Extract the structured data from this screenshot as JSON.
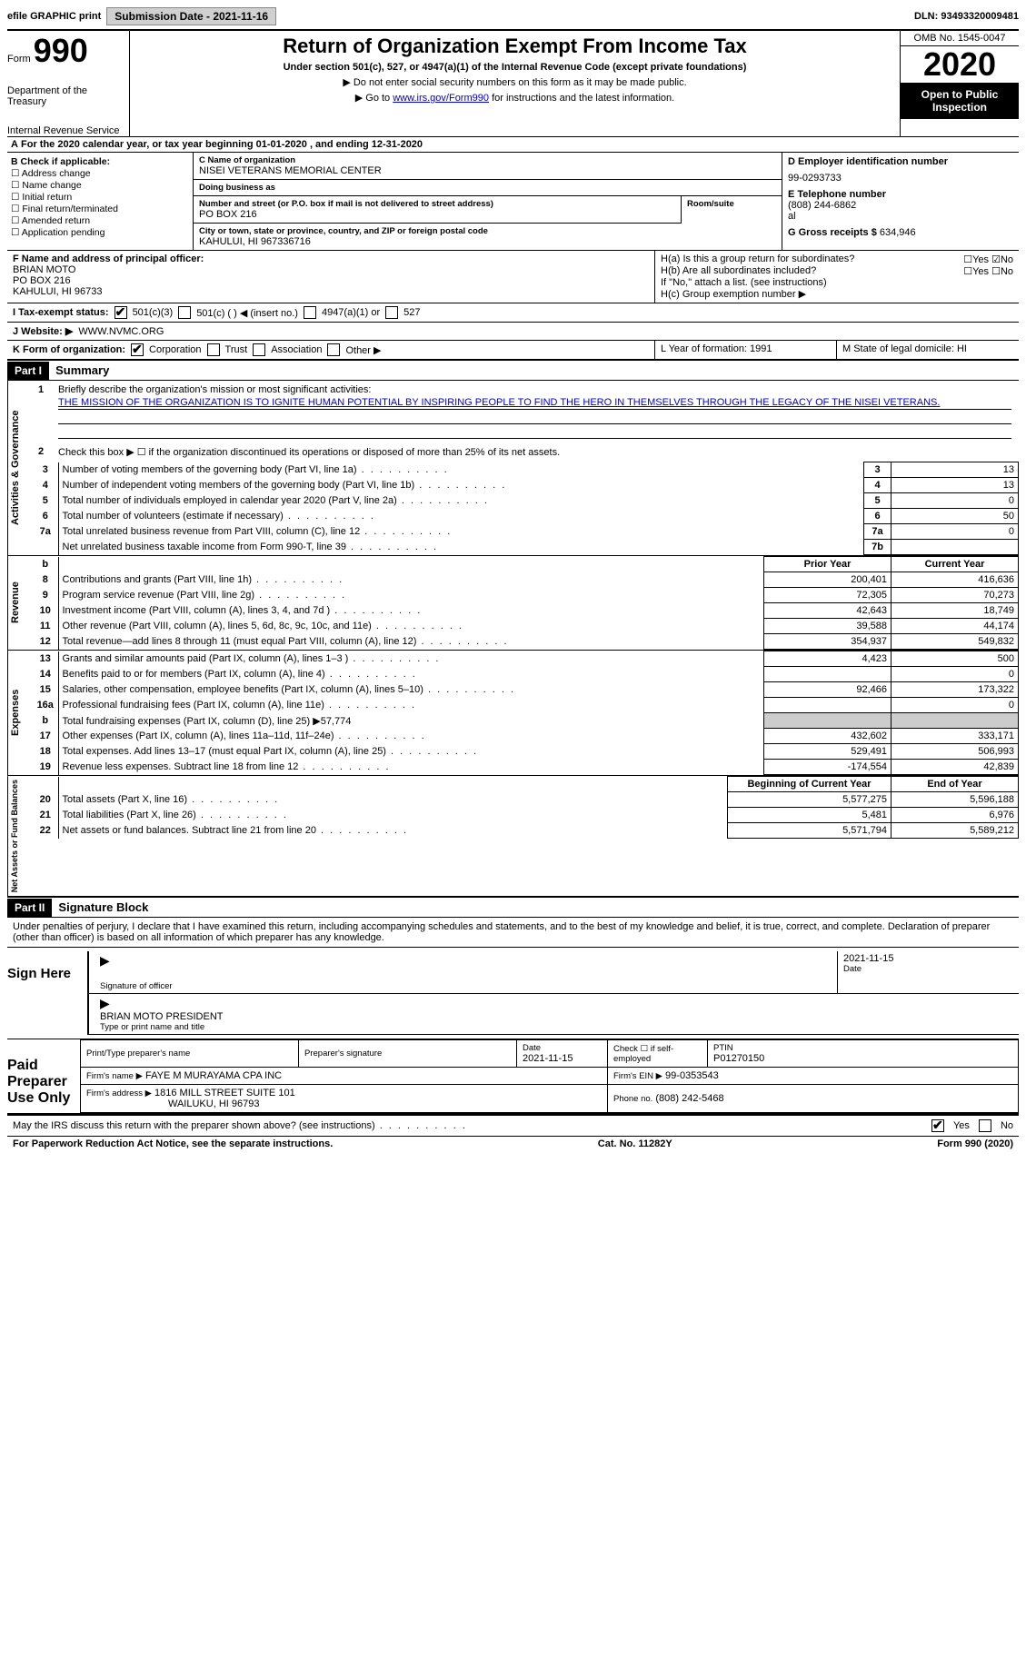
{
  "topbar": {
    "efile": "efile GRAPHIC print",
    "submission_label": "Submission Date - 2021-11-16",
    "dln": "DLN: 93493320009481"
  },
  "header": {
    "form_prefix": "Form",
    "form_number": "990",
    "dept1": "Department of the Treasury",
    "dept2": "Internal Revenue Service",
    "title": "Return of Organization Exempt From Income Tax",
    "subtitle": "Under section 501(c), 527, or 4947(a)(1) of the Internal Revenue Code (except private foundations)",
    "note1": "▶ Do not enter social security numbers on this form as it may be made public.",
    "note2_pre": "▶ Go to ",
    "note2_link": "www.irs.gov/Form990",
    "note2_post": " for instructions and the latest information.",
    "omb": "OMB No. 1545-0047",
    "year": "2020",
    "open_public": "Open to Public Inspection"
  },
  "periodA": "For the 2020 calendar year, or tax year beginning 01-01-2020  , and ending 12-31-2020",
  "sectionB": {
    "title": "B Check if applicable:",
    "items": [
      "Address change",
      "Name change",
      "Initial return",
      "Final return/terminated",
      "Amended return",
      "Application pending"
    ]
  },
  "sectionC": {
    "name_lbl": "C Name of organization",
    "name": "NISEI VETERANS MEMORIAL CENTER",
    "dba_lbl": "Doing business as",
    "dba": "",
    "addr_lbl": "Number and street (or P.O. box if mail is not delivered to street address)",
    "addr": "PO BOX 216",
    "suite_lbl": "Room/suite",
    "city_lbl": "City or town, state or province, country, and ZIP or foreign postal code",
    "city": "KAHULUI, HI  967336716"
  },
  "sectionD": {
    "lbl": "D Employer identification number",
    "ein": "99-0293733"
  },
  "sectionE": {
    "lbl": "E Telephone number",
    "phone": "(808) 244-6862"
  },
  "sectionG": {
    "lbl": "G Gross receipts $",
    "amount": "634,946"
  },
  "sectionF": {
    "lbl": "F Name and address of principal officer:",
    "name": "BRIAN MOTO",
    "addr1": "PO BOX 216",
    "addr2": "KAHULUI, HI  96733"
  },
  "sectionH": {
    "a": "H(a)  Is this a group return for subordinates?",
    "b": "H(b)  Are all subordinates included?",
    "b_note": "If \"No,\" attach a list. (see instructions)",
    "c": "H(c)  Group exemption number ▶",
    "yes": "Yes",
    "no": "No"
  },
  "taxexempt": {
    "lbl": "I  Tax-exempt status:",
    "o1": "501(c)(3)",
    "o2": "501(c) (  ) ◀ (insert no.)",
    "o3": "4947(a)(1) or",
    "o4": "527"
  },
  "sectionJ": {
    "lbl": "J  Website: ▶",
    "val": "WWW.NVMC.ORG"
  },
  "rowKLM": {
    "k_lbl": "K Form of organization:",
    "k_opts": [
      "Corporation",
      "Trust",
      "Association",
      "Other ▶"
    ],
    "l": "L Year of formation: 1991",
    "m": "M State of legal domicile: HI"
  },
  "part1": {
    "hdr": "Part I",
    "title": "Summary",
    "q1_lbl": "Briefly describe the organization's mission or most significant activities:",
    "q1": "THE MISSION OF THE ORGANIZATION IS TO IGNITE HUMAN POTENTIAL BY INSPIRING PEOPLE TO FIND THE HERO IN THEMSELVES THROUGH THE LEGACY OF THE NISEI VETERANS.",
    "q2": "Check this box ▶ ☐  if the organization discontinued its operations or disposed of more than 25% of its net assets.",
    "rows_gov": [
      {
        "n": "3",
        "t": "Number of voting members of the governing body (Part VI, line 1a)",
        "k": "3",
        "v": "13"
      },
      {
        "n": "4",
        "t": "Number of independent voting members of the governing body (Part VI, line 1b)",
        "k": "4",
        "v": "13"
      },
      {
        "n": "5",
        "t": "Total number of individuals employed in calendar year 2020 (Part V, line 2a)",
        "k": "5",
        "v": "0"
      },
      {
        "n": "6",
        "t": "Total number of volunteers (estimate if necessary)",
        "k": "6",
        "v": "50"
      },
      {
        "n": "7a",
        "t": "Total unrelated business revenue from Part VIII, column (C), line 12",
        "k": "7a",
        "v": "0"
      },
      {
        "n": "",
        "t": "Net unrelated business taxable income from Form 990-T, line 39",
        "k": "7b",
        "v": ""
      }
    ],
    "col_prior": "Prior Year",
    "col_curr": "Current Year",
    "revenue_rows": [
      {
        "n": "8",
        "t": "Contributions and grants (Part VIII, line 1h)",
        "p": "200,401",
        "c": "416,636"
      },
      {
        "n": "9",
        "t": "Program service revenue (Part VIII, line 2g)",
        "p": "72,305",
        "c": "70,273"
      },
      {
        "n": "10",
        "t": "Investment income (Part VIII, column (A), lines 3, 4, and 7d )",
        "p": "42,643",
        "c": "18,749"
      },
      {
        "n": "11",
        "t": "Other revenue (Part VIII, column (A), lines 5, 6d, 8c, 9c, 10c, and 11e)",
        "p": "39,588",
        "c": "44,174"
      },
      {
        "n": "12",
        "t": "Total revenue—add lines 8 through 11 (must equal Part VIII, column (A), line 12)",
        "p": "354,937",
        "c": "549,832"
      }
    ],
    "expense_rows": [
      {
        "n": "13",
        "t": "Grants and similar amounts paid (Part IX, column (A), lines 1–3 )",
        "p": "4,423",
        "c": "500"
      },
      {
        "n": "14",
        "t": "Benefits paid to or for members (Part IX, column (A), line 4)",
        "p": "",
        "c": "0"
      },
      {
        "n": "15",
        "t": "Salaries, other compensation, employee benefits (Part IX, column (A), lines 5–10)",
        "p": "92,466",
        "c": "173,322"
      },
      {
        "n": "16a",
        "t": "Professional fundraising fees (Part IX, column (A), line 11e)",
        "p": "",
        "c": "0"
      },
      {
        "n": "b",
        "t": "Total fundraising expenses (Part IX, column (D), line 25) ▶57,774",
        "p": "shade",
        "c": "shade"
      },
      {
        "n": "17",
        "t": "Other expenses (Part IX, column (A), lines 11a–11d, 11f–24e)",
        "p": "432,602",
        "c": "333,171"
      },
      {
        "n": "18",
        "t": "Total expenses. Add lines 13–17 (must equal Part IX, column (A), line 25)",
        "p": "529,491",
        "c": "506,993"
      },
      {
        "n": "19",
        "t": "Revenue less expenses. Subtract line 18 from line 12",
        "p": "-174,554",
        "c": "42,839"
      }
    ],
    "col_begin": "Beginning of Current Year",
    "col_end": "End of Year",
    "netasset_rows": [
      {
        "n": "20",
        "t": "Total assets (Part X, line 16)",
        "p": "5,577,275",
        "c": "5,596,188"
      },
      {
        "n": "21",
        "t": "Total liabilities (Part X, line 26)",
        "p": "5,481",
        "c": "6,976"
      },
      {
        "n": "22",
        "t": "Net assets or fund balances. Subtract line 21 from line 20",
        "p": "5,571,794",
        "c": "5,589,212"
      }
    ],
    "tab_gov": "Activities & Governance",
    "tab_rev": "Revenue",
    "tab_exp": "Expenses",
    "tab_net": "Net Assets or Fund Balances"
  },
  "part2": {
    "hdr": "Part II",
    "title": "Signature Block",
    "penalty": "Under penalties of perjury, I declare that I have examined this return, including accompanying schedules and statements, and to the best of my knowledge and belief, it is true, correct, and complete. Declaration of preparer (other than officer) is based on all information of which preparer has any knowledge.",
    "sign_here": "Sign Here",
    "sig_date": "2021-11-15",
    "sig_lbl": "Signature of officer",
    "date_lbl": "Date",
    "officer": "BRIAN MOTO PRESIDENT",
    "officer_lbl": "Type or print name and title",
    "paid": "Paid Preparer Use Only",
    "prep_name_lbl": "Print/Type preparer's name",
    "prep_sig_lbl": "Preparer's signature",
    "prep_date_lbl": "Date",
    "prep_date": "2021-11-15",
    "check_self": "Check ☐ if self-employed",
    "ptin_lbl": "PTIN",
    "ptin": "P01270150",
    "firm_name_lbl": "Firm's name   ▶",
    "firm_name": "FAYE M MURAYAMA CPA INC",
    "firm_ein_lbl": "Firm's EIN ▶",
    "firm_ein": "99-0353543",
    "firm_addr_lbl": "Firm's address ▶",
    "firm_addr": "1816 MILL STREET SUITE 101",
    "firm_city": "WAILUKU, HI  96793",
    "firm_phone_lbl": "Phone no.",
    "firm_phone": "(808) 242-5468",
    "discuss": "May the IRS discuss this return with the preparer shown above? (see instructions)",
    "yes": "Yes",
    "no": "No"
  },
  "footer": {
    "pra": "For Paperwork Reduction Act Notice, see the separate instructions.",
    "cat": "Cat. No. 11282Y",
    "form": "Form 990 (2020)"
  }
}
